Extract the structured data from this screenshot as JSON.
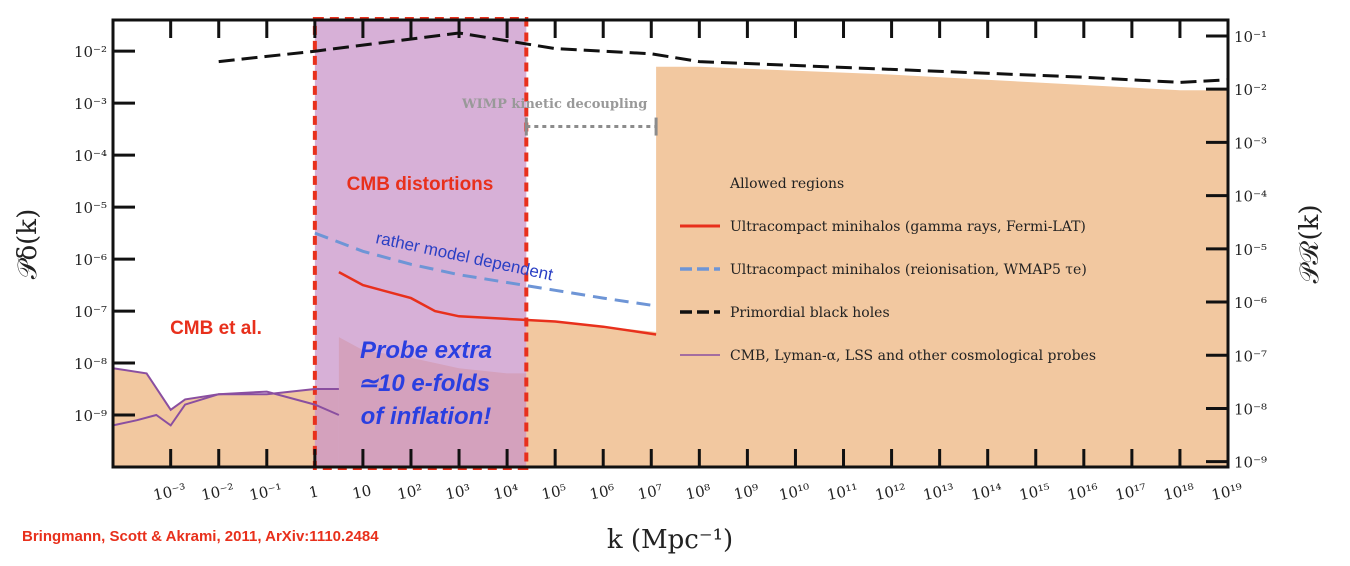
{
  "chart_data": {
    "type": "area",
    "xlabel": "k (Mpc⁻¹)",
    "ylabel_left": "𝒫δ(k)",
    "ylabel_right": "𝒫ℛ(k)",
    "xscale": "log",
    "xlim": [
      -4.2,
      19
    ],
    "ylim_left": [
      -10,
      -1.4
    ],
    "ylim_right": [
      -9.1,
      -0.7
    ],
    "x_ticks": [
      {
        "exp": -3,
        "label": "10⁻³"
      },
      {
        "exp": -2,
        "label": "10⁻²"
      },
      {
        "exp": -1,
        "label": "10⁻¹"
      },
      {
        "exp": 0,
        "label": "1"
      },
      {
        "exp": 1,
        "label": "10"
      },
      {
        "exp": 2,
        "label": "10²"
      },
      {
        "exp": 3,
        "label": "10³"
      },
      {
        "exp": 4,
        "label": "10⁴"
      },
      {
        "exp": 5,
        "label": "10⁵"
      },
      {
        "exp": 6,
        "label": "10⁶"
      },
      {
        "exp": 7,
        "label": "10⁷"
      },
      {
        "exp": 8,
        "label": "10⁸"
      },
      {
        "exp": 9,
        "label": "10⁹"
      },
      {
        "exp": 10,
        "label": "10¹⁰"
      },
      {
        "exp": 11,
        "label": "10¹¹"
      },
      {
        "exp": 12,
        "label": "10¹²"
      },
      {
        "exp": 13,
        "label": "10¹³"
      },
      {
        "exp": 14,
        "label": "10¹⁴"
      },
      {
        "exp": 15,
        "label": "10¹⁵"
      },
      {
        "exp": 16,
        "label": "10¹⁶"
      },
      {
        "exp": 17,
        "label": "10¹⁷"
      },
      {
        "exp": 18,
        "label": "10¹⁸"
      },
      {
        "exp": 19,
        "label": "10¹⁹"
      }
    ],
    "y_ticks_left": [
      {
        "exp": -2,
        "label": "10⁻²"
      },
      {
        "exp": -3,
        "label": "10⁻³"
      },
      {
        "exp": -4,
        "label": "10⁻⁴"
      },
      {
        "exp": -5,
        "label": "10⁻⁵"
      },
      {
        "exp": -6,
        "label": "10⁻⁶"
      },
      {
        "exp": -7,
        "label": "10⁻⁷"
      },
      {
        "exp": -8,
        "label": "10⁻⁸"
      },
      {
        "exp": -9,
        "label": "10⁻⁹"
      }
    ],
    "y_ticks_right": [
      {
        "exp": -1,
        "label": "10⁻¹"
      },
      {
        "exp": -2,
        "label": "10⁻²"
      },
      {
        "exp": -3,
        "label": "10⁻³"
      },
      {
        "exp": -4,
        "label": "10⁻⁴"
      },
      {
        "exp": -5,
        "label": "10⁻⁵"
      },
      {
        "exp": -6,
        "label": "10⁻⁶"
      },
      {
        "exp": -7,
        "label": "10⁻⁷"
      },
      {
        "exp": -8,
        "label": "10⁻⁸"
      },
      {
        "exp": -9,
        "label": "10⁻⁹"
      }
    ],
    "series": [
      {
        "name": "Allowed regions",
        "style": "fill",
        "color": "#f2c8a0",
        "regions": [
          {
            "points": [
              [
                -4.2,
                -8.1
              ],
              [
                -3.5,
                -8.2
              ],
              [
                -3,
                -8.9
              ],
              [
                -2.7,
                -8.7
              ],
              [
                -2,
                -8.6
              ],
              [
                -1,
                -8.6
              ],
              [
                0,
                -8.5
              ],
              [
                0.5,
                -8.5
              ],
              [
                0.5,
                -10
              ],
              [
                -4.2,
                -10
              ]
            ]
          },
          {
            "points": [
              [
                0.5,
                -7.5
              ],
              [
                1,
                -7.75
              ],
              [
                2,
                -7.9
              ],
              [
                3,
                -8.1
              ],
              [
                4,
                -8.2
              ],
              [
                4.4,
                -8.2
              ],
              [
                4.4,
                -10
              ],
              [
                0.5,
                -10
              ]
            ]
          },
          {
            "points": [
              [
                4.4,
                -7.15
              ],
              [
                5,
                -7.2
              ],
              [
                6,
                -7.3
              ],
              [
                7.1,
                -7.4
              ],
              [
                7.1,
                -2.3
              ],
              [
                8,
                -2.3
              ],
              [
                12,
                -2.45
              ],
              [
                16,
                -2.65
              ],
              [
                18,
                -2.75
              ],
              [
                19,
                -2.75
              ],
              [
                19,
                -10
              ],
              [
                4.4,
                -10
              ]
            ]
          }
        ]
      },
      {
        "name": "Ultracompact minihalos (gamma rays, Fermi-LAT)",
        "style": "solid",
        "color": "#e8301c",
        "points": [
          [
            0.5,
            -6.25
          ],
          [
            1,
            -6.5
          ],
          [
            2,
            -6.75
          ],
          [
            2.5,
            -7.0
          ],
          [
            3,
            -7.1
          ],
          [
            4,
            -7.15
          ],
          [
            5,
            -7.2
          ],
          [
            6,
            -7.3
          ],
          [
            7.1,
            -7.45
          ]
        ]
      },
      {
        "name": "Ultracompact minihalos (reionisation, WMAP5 τe)",
        "style": "dashed",
        "color": "#6e95d6",
        "points": [
          [
            0,
            -5.5
          ],
          [
            1,
            -5.85
          ],
          [
            2,
            -6.1
          ],
          [
            3,
            -6.3
          ],
          [
            4,
            -6.45
          ],
          [
            5,
            -6.6
          ],
          [
            6,
            -6.75
          ],
          [
            7.1,
            -6.9
          ]
        ]
      },
      {
        "name": "Primordial black holes",
        "style": "dashed",
        "color": "#111111",
        "points": [
          [
            -2,
            -2.2
          ],
          [
            0,
            -2.0
          ],
          [
            3,
            -1.65
          ],
          [
            5,
            -1.95
          ],
          [
            7,
            -2.05
          ],
          [
            8,
            -2.2
          ],
          [
            12,
            -2.35
          ],
          [
            16,
            -2.5
          ],
          [
            18,
            -2.6
          ],
          [
            19,
            -2.55
          ]
        ]
      },
      {
        "name": "CMB, Lyman-α, LSS and other cosmological probes",
        "style": "solid",
        "color": "#8a4fa0",
        "points_upper": [
          [
            -4.2,
            -8.1
          ],
          [
            -3.5,
            -8.2
          ],
          [
            -3,
            -8.9
          ],
          [
            -2.7,
            -8.7
          ],
          [
            -2,
            -8.6
          ],
          [
            -1,
            -8.6
          ],
          [
            0,
            -8.5
          ],
          [
            0.5,
            -8.5
          ]
        ],
        "points_lower": [
          [
            -4.2,
            -9.2
          ],
          [
            -3.7,
            -9.1
          ],
          [
            -3.3,
            -9.0
          ],
          [
            -3,
            -9.2
          ],
          [
            -2.7,
            -8.8
          ],
          [
            -2,
            -8.6
          ],
          [
            -1,
            -8.55
          ],
          [
            0,
            -8.8
          ],
          [
            0.5,
            -9.0
          ]
        ]
      }
    ],
    "shaded_band": {
      "name": "CMB distortions",
      "x_range": [
        0,
        4.4
      ],
      "color": "#c892c8"
    },
    "bracket": {
      "label": "WIMP kinetic decoupling",
      "x_range": [
        4.4,
        7.1
      ],
      "y": -3.45
    },
    "annotations": {
      "cmb_distortions": "CMB distortions",
      "model_dependent": "rather model dependent",
      "cmb_et_al": "CMB et al.",
      "probe_line1": "Probe extra",
      "probe_line2": "≃10 e-folds",
      "probe_line3": "of inflation!"
    },
    "legend": {
      "position": "center-right",
      "entries": [
        "Allowed regions",
        "Ultracompact minihalos (gamma rays, Fermi-LAT)",
        "Ultracompact minihalos (reionisation, WMAP5 τe)",
        "Primordial black holes",
        "CMB, Lyman-α, LSS and other cosmological probes"
      ]
    },
    "citation": "Bringmann, Scott & Akrami, 2011, ArXiv:1110.2484"
  }
}
